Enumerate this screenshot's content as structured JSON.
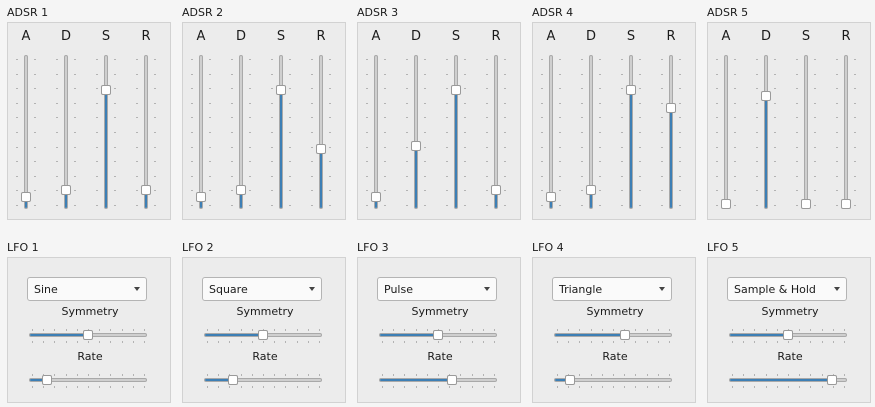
{
  "adsr": [
    {
      "title": "ADSR 1",
      "sliders": [
        {
          "label": "A",
          "value": 0.05
        },
        {
          "label": "D",
          "value": 0.1
        },
        {
          "label": "S",
          "value": 0.79
        },
        {
          "label": "R",
          "value": 0.1
        }
      ]
    },
    {
      "title": "ADSR 2",
      "sliders": [
        {
          "label": "A",
          "value": 0.05
        },
        {
          "label": "D",
          "value": 0.1
        },
        {
          "label": "S",
          "value": 0.79
        },
        {
          "label": "R",
          "value": 0.38
        }
      ]
    },
    {
      "title": "ADSR 3",
      "sliders": [
        {
          "label": "A",
          "value": 0.05
        },
        {
          "label": "D",
          "value": 0.4
        },
        {
          "label": "S",
          "value": 0.79
        },
        {
          "label": "R",
          "value": 0.1
        }
      ]
    },
    {
      "title": "ADSR 4",
      "sliders": [
        {
          "label": "A",
          "value": 0.05
        },
        {
          "label": "D",
          "value": 0.1
        },
        {
          "label": "S",
          "value": 0.79
        },
        {
          "label": "R",
          "value": 0.67
        }
      ]
    },
    {
      "title": "ADSR 5",
      "sliders": [
        {
          "label": "A",
          "value": 0.0
        },
        {
          "label": "D",
          "value": 0.75
        },
        {
          "label": "S",
          "value": 0.0
        },
        {
          "label": "R",
          "value": 0.0
        }
      ]
    }
  ],
  "lfo": [
    {
      "title": "LFO 1",
      "waveform": "Sine",
      "symmetry_label": "Symmetry",
      "symmetry": 0.5,
      "rate_label": "Rate",
      "rate": 0.12
    },
    {
      "title": "LFO 2",
      "waveform": "Square",
      "symmetry_label": "Symmetry",
      "symmetry": 0.5,
      "rate_label": "Rate",
      "rate": 0.22
    },
    {
      "title": "LFO 3",
      "waveform": "Pulse",
      "symmetry_label": "Symmetry",
      "symmetry": 0.5,
      "rate_label": "Rate",
      "rate": 0.63
    },
    {
      "title": "LFO 4",
      "waveform": "Triangle",
      "symmetry_label": "Symmetry",
      "symmetry": 0.61,
      "rate_label": "Rate",
      "rate": 0.1
    },
    {
      "title": "LFO 5",
      "waveform": "Sample & Hold",
      "symmetry_label": "Symmetry",
      "symmetry": 0.5,
      "rate_label": "Rate",
      "rate": 0.91
    }
  ],
  "colors": {
    "fill": "#3d7fb5",
    "groove": "#cfcfcf",
    "panel": "#ececec"
  }
}
